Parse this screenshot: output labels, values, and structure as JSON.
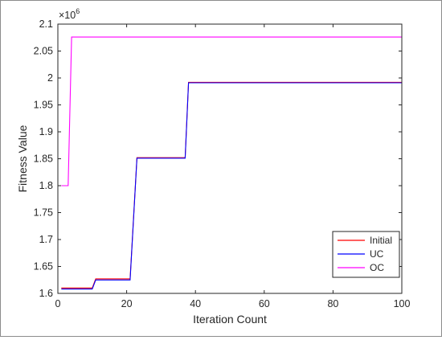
{
  "chart_data": {
    "type": "line",
    "xlabel": "Iteration Count",
    "ylabel": "Fitness Value",
    "y_exponent_label": "×10",
    "y_exponent_power": "6",
    "xlim": [
      0,
      100
    ],
    "ylim": [
      1.6,
      2.1
    ],
    "x_ticks": [
      0,
      20,
      40,
      60,
      80,
      100
    ],
    "x_tick_labels": [
      "0",
      "20",
      "40",
      "60",
      "80",
      "100"
    ],
    "y_ticks": [
      1.6,
      1.65,
      1.7,
      1.75,
      1.8,
      1.85,
      1.9,
      1.95,
      2.0,
      2.05,
      2.1
    ],
    "y_tick_labels": [
      "1.6",
      "1.65",
      "1.7",
      "1.75",
      "1.8",
      "1.85",
      "1.9",
      "1.95",
      "2",
      "2.05",
      "2.1"
    ],
    "legend_position": "bottom-right",
    "series": [
      {
        "name": "Initial",
        "color": "#ff0000",
        "x": [
          1,
          10,
          11,
          21,
          23,
          37,
          38,
          100
        ],
        "y": [
          1.61,
          1.61,
          1.627,
          1.627,
          1.852,
          1.852,
          1.992,
          1.992
        ]
      },
      {
        "name": "UC",
        "color": "#0000ff",
        "x": [
          1,
          10,
          11,
          21,
          23,
          37,
          38,
          100
        ],
        "y": [
          1.608,
          1.608,
          1.625,
          1.625,
          1.851,
          1.851,
          1.991,
          1.991
        ]
      },
      {
        "name": "OC",
        "color": "#ff00ff",
        "x": [
          1,
          3,
          4,
          100
        ],
        "y": [
          1.8,
          1.8,
          2.076,
          2.076
        ]
      }
    ]
  }
}
